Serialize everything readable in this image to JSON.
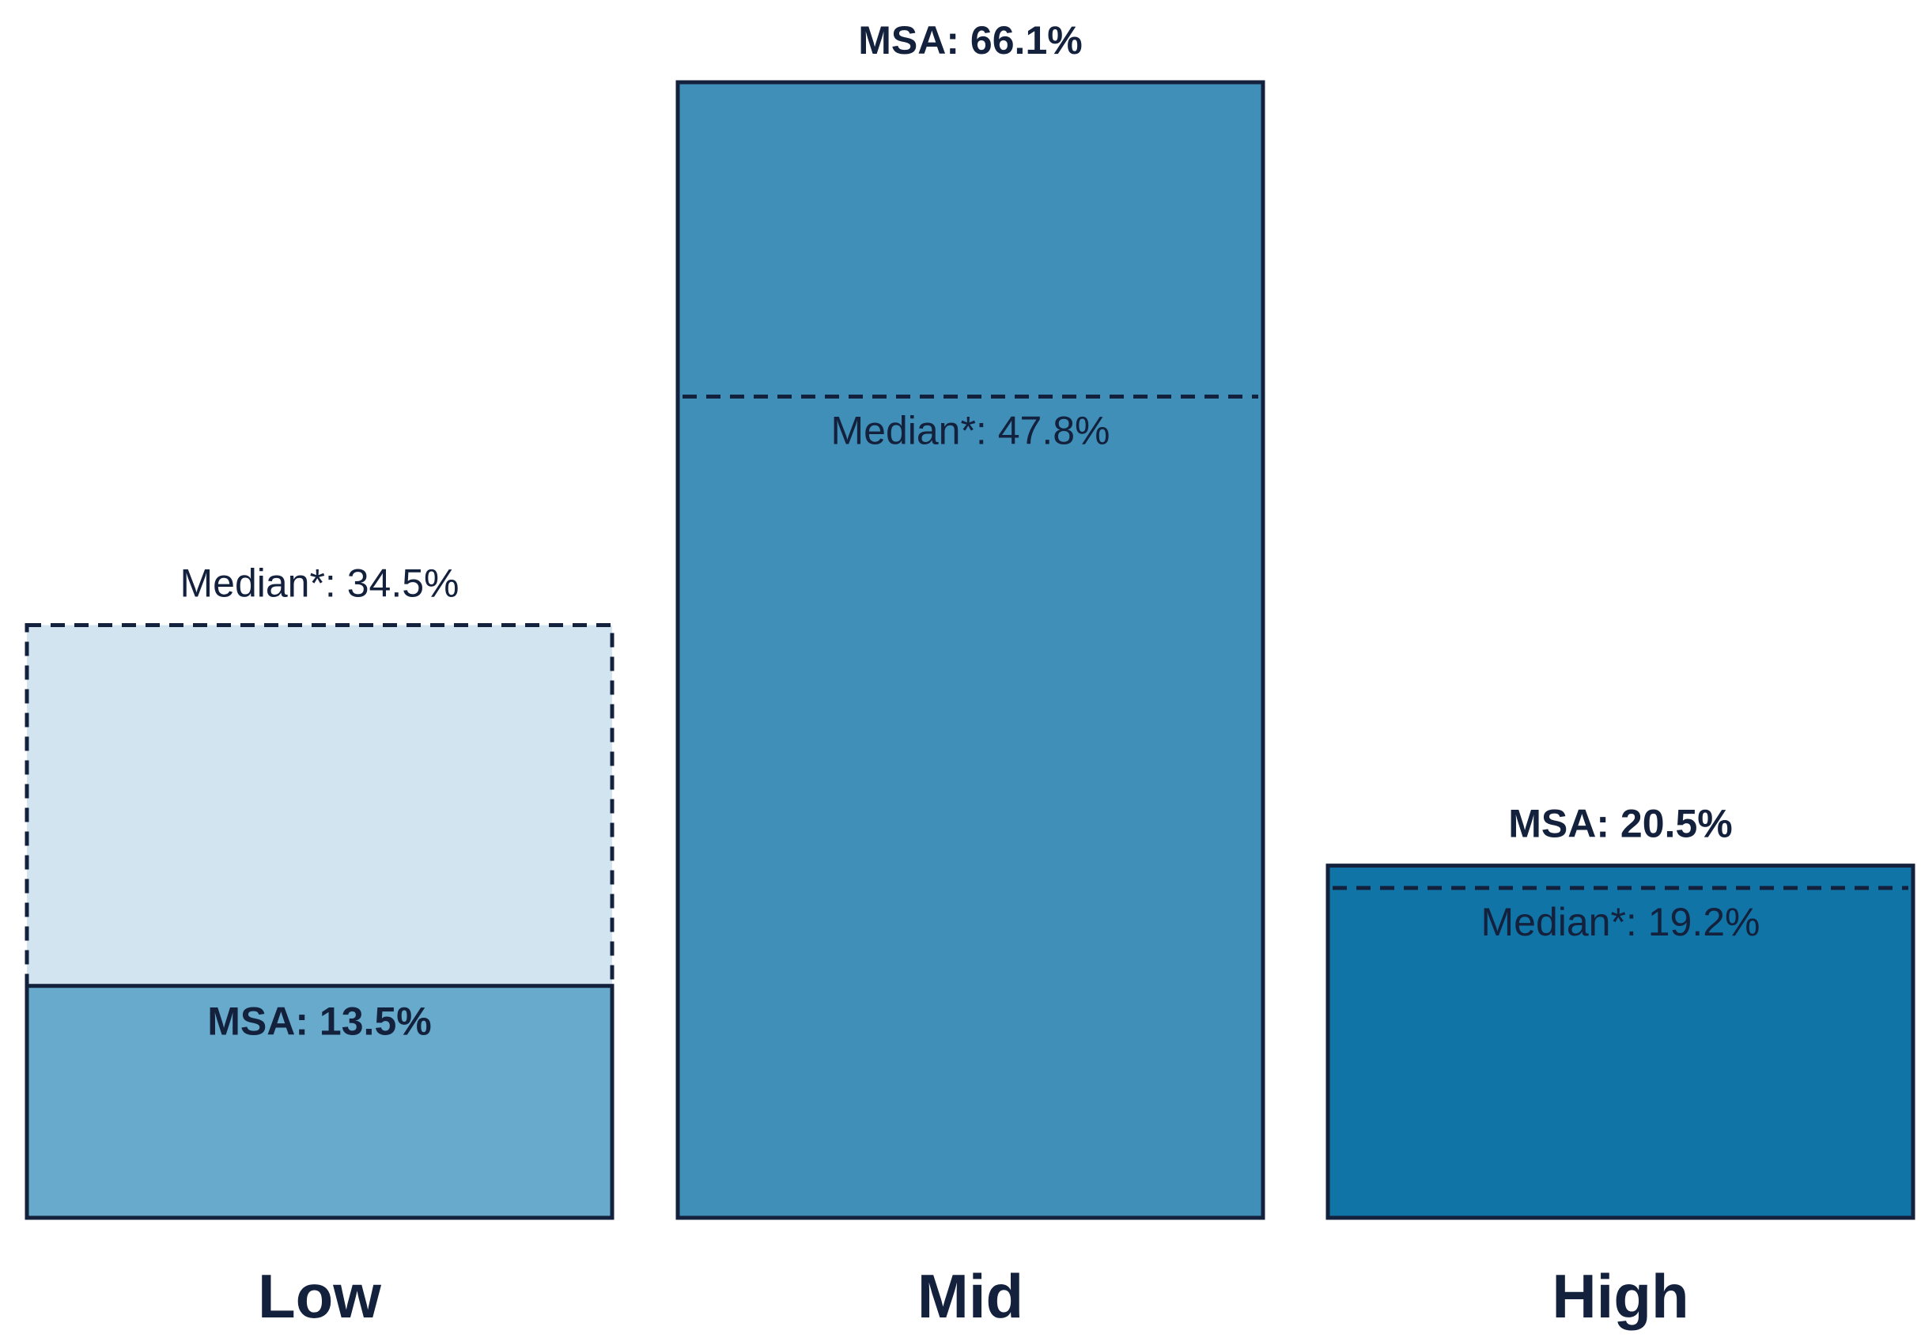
{
  "chart_data": {
    "type": "bar",
    "categories": [
      "Low",
      "Mid",
      "High"
    ],
    "series": [
      {
        "name": "MSA",
        "values": [
          13.5,
          66.1,
          20.5
        ]
      },
      {
        "name": "Median*",
        "values": [
          34.5,
          47.8,
          19.2
        ]
      }
    ],
    "msa_labels": [
      "MSA: 13.5%",
      "MSA: 66.1%",
      "MSA: 20.5%"
    ],
    "median_labels": [
      "Median*: 34.5%",
      "Median*: 47.8%",
      "Median*: 19.2%"
    ],
    "colors": [
      "#67aacc",
      "#3f8fb8",
      "#1174a6"
    ],
    "median_fill_color": "#d1e4ef",
    "outline_color": "#14213d",
    "ylim": [
      0,
      66.1
    ],
    "title": "",
    "xlabel": "",
    "ylabel": "",
    "grid": false,
    "legend": "none"
  }
}
